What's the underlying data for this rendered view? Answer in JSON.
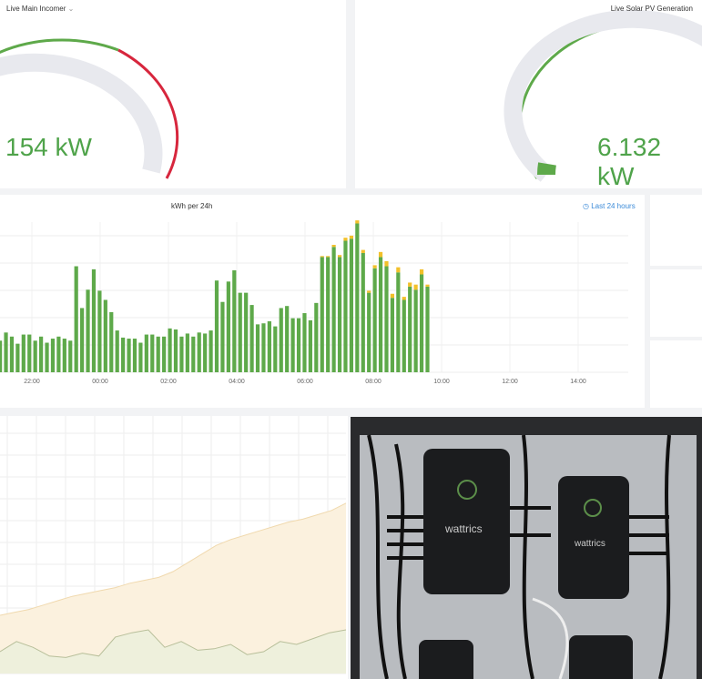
{
  "gauges": [
    {
      "title": "Live Main Incomer",
      "value": "154 kW",
      "menu_icon": "chevron-down-icon"
    },
    {
      "title": "Live Solar PV Generation",
      "value": "6.132 kW"
    }
  ],
  "bar_panel": {
    "title": "kWh per 24h",
    "time_range": "Last 24 hours",
    "time_icon": "clock-icon"
  },
  "colors": {
    "green": "#5ea94a",
    "red": "#d7263d",
    "yellow": "#f2c02a",
    "grey": "#e8e9ee",
    "solar_area": "#fbf1de"
  },
  "chart_data": [
    {
      "type": "bar",
      "title": "kWh per 24h",
      "x_ticks": [
        "22:00",
        "00:00",
        "02:00",
        "04:00",
        "06:00",
        "08:00",
        "10:00",
        "12:00",
        "14:00"
      ],
      "series": [
        {
          "values": [
            31,
            39,
            35,
            28,
            37,
            37,
            31,
            35,
            29,
            33,
            35,
            33,
            31,
            104,
            63,
            81,
            101,
            80,
            71,
            59,
            41,
            34,
            33,
            33,
            29,
            37,
            37,
            35,
            35,
            43,
            42,
            35,
            38,
            35,
            39,
            38,
            41,
            90,
            69,
            89,
            100,
            78,
            78,
            66,
            47,
            48,
            50,
            45,
            63,
            65,
            53,
            53,
            58,
            51,
            68,
            113,
            113,
            123,
            113,
            129,
            131,
            146,
            117,
            78,
            102,
            113,
            104,
            73,
            98,
            71,
            84,
            81,
            96,
            84
          ]
        },
        {
          "values": [
            0,
            0,
            0,
            0,
            0,
            0,
            0,
            0,
            0,
            0,
            0,
            0,
            0,
            0,
            0,
            0,
            0,
            0,
            0,
            0,
            0,
            0,
            0,
            0,
            0,
            0,
            0,
            0,
            0,
            0,
            0,
            0,
            0,
            0,
            0,
            0,
            0,
            0,
            0,
            0,
            0,
            0,
            0,
            0,
            0,
            0,
            0,
            0,
            0,
            0,
            0,
            0,
            0,
            0,
            0,
            1,
            1,
            2,
            2,
            3,
            3,
            3,
            3,
            2,
            3,
            5,
            5,
            4,
            5,
            3,
            4,
            5,
            5,
            2
          ]
        }
      ],
      "grid": true
    },
    {
      "type": "area",
      "series": [
        {
          "values": [
            40,
            42,
            44,
            47,
            50,
            53,
            55,
            57,
            59,
            62,
            64,
            66,
            70,
            76,
            82,
            88,
            92,
            95,
            98,
            101,
            104,
            106,
            109,
            112,
            117
          ]
        },
        {
          "values": [
            15,
            22,
            18,
            12,
            11,
            14,
            12,
            25,
            28,
            30,
            18,
            22,
            16,
            17,
            20,
            13,
            15,
            22,
            20,
            24,
            28,
            30
          ]
        }
      ],
      "grid": true
    }
  ]
}
